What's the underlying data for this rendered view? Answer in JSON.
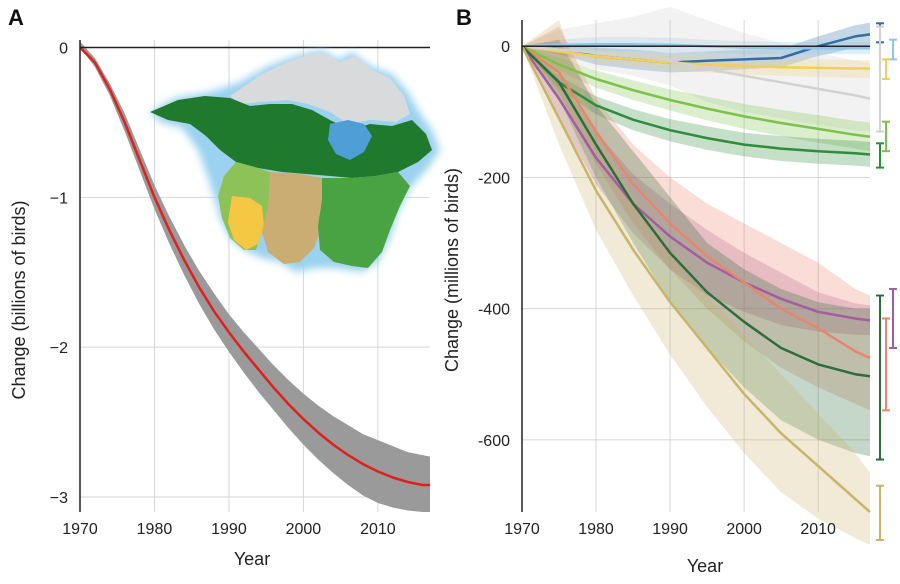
{
  "panel_a": {
    "label": "A",
    "chart_data": {
      "type": "line",
      "xlabel": "Year",
      "ylabel": "Change (billions of birds)",
      "xlim": [
        1970,
        2017
      ],
      "ylim": [
        -3.1,
        0.05
      ],
      "xticks": [
        1970,
        1980,
        1990,
        2000,
        2010
      ],
      "yticks": [
        0,
        -1,
        -2,
        -3
      ],
      "ytick_labels": [
        "0",
        "−1",
        "−2",
        "−3"
      ],
      "grid": true,
      "series": [
        {
          "color": "#e0201b",
          "band_color": "#9a9a9a",
          "x": [
            1970,
            1972,
            1974,
            1976,
            1978,
            1980,
            1982,
            1984,
            1986,
            1988,
            1990,
            1992,
            1994,
            1996,
            1998,
            2000,
            2002,
            2004,
            2006,
            2008,
            2010,
            2012,
            2014,
            2016,
            2017
          ],
          "y": [
            0,
            -0.1,
            -0.28,
            -0.5,
            -0.75,
            -1.0,
            -1.22,
            -1.42,
            -1.6,
            -1.76,
            -1.9,
            -2.03,
            -2.15,
            -2.27,
            -2.38,
            -2.48,
            -2.57,
            -2.65,
            -2.72,
            -2.78,
            -2.83,
            -2.87,
            -2.9,
            -2.92,
            -2.92
          ],
          "lower": [
            0,
            -0.13,
            -0.32,
            -0.56,
            -0.82,
            -1.08,
            -1.31,
            -1.52,
            -1.71,
            -1.88,
            -2.03,
            -2.17,
            -2.3,
            -2.42,
            -2.54,
            -2.65,
            -2.75,
            -2.84,
            -2.92,
            -2.99,
            -3.04,
            -3.07,
            -3.09,
            -3.1,
            -3.1
          ],
          "upper": [
            0.04,
            -0.07,
            -0.24,
            -0.44,
            -0.68,
            -0.92,
            -1.13,
            -1.32,
            -1.49,
            -1.64,
            -1.78,
            -1.9,
            -2.01,
            -2.12,
            -2.22,
            -2.31,
            -2.39,
            -2.46,
            -2.52,
            -2.58,
            -2.62,
            -2.66,
            -2.7,
            -2.72,
            -2.73
          ]
        }
      ]
    }
  },
  "panel_b": {
    "label": "B",
    "chart_data": {
      "type": "line",
      "xlabel": "Year",
      "ylabel": "Change (millions of birds)",
      "xlim": [
        1970,
        2017
      ],
      "ylim": [
        -710,
        40
      ],
      "xticks": [
        1970,
        1980,
        1990,
        2000,
        2010
      ],
      "yticks": [
        0,
        -200,
        -400,
        -600
      ],
      "ytick_labels": [
        "0",
        "-200",
        "-400",
        "-600"
      ],
      "grid": true,
      "series": [
        {
          "color": "#2f6fa6",
          "x": [
            1970,
            1975,
            1980,
            1985,
            1990,
            1995,
            2000,
            2005,
            2010,
            2015,
            2017
          ],
          "y": [
            0,
            -5,
            -15,
            -20,
            -25,
            -22,
            -20,
            -18,
            0,
            15,
            18
          ],
          "lower": [
            0,
            -12,
            -28,
            -35,
            -40,
            -38,
            -35,
            -32,
            -15,
            -2,
            0
          ],
          "upper": [
            0,
            2,
            -2,
            -5,
            -10,
            -8,
            -5,
            -4,
            15,
            32,
            36
          ],
          "range": [
            6,
            35
          ]
        },
        {
          "color": "#8cc6ea",
          "x": [
            1970,
            1975,
            1980,
            1985,
            1990,
            1995,
            2000,
            2005,
            2010,
            2015,
            2017
          ],
          "y": [
            0,
            2,
            3,
            3,
            2,
            0,
            -2,
            -3,
            -3,
            -3,
            -3
          ],
          "lower": [
            0,
            -6,
            -8,
            -8,
            -9,
            -10,
            -12,
            -12,
            -12,
            -12,
            -12
          ],
          "upper": [
            0,
            10,
            14,
            14,
            13,
            10,
            8,
            6,
            6,
            6,
            6
          ],
          "range": [
            -20,
            10
          ]
        },
        {
          "color": "#f3cf55",
          "x": [
            1970,
            1975,
            1980,
            1985,
            1990,
            1995,
            2000,
            2005,
            2010,
            2015,
            2017
          ],
          "y": [
            0,
            -8,
            -15,
            -20,
            -25,
            -28,
            -30,
            -32,
            -33,
            -34,
            -34
          ],
          "lower": [
            0,
            -14,
            -24,
            -30,
            -36,
            -40,
            -43,
            -45,
            -47,
            -48,
            -48
          ],
          "upper": [
            0,
            -2,
            -6,
            -10,
            -14,
            -16,
            -17,
            -19,
            -20,
            -21,
            -21
          ],
          "range": [
            -50,
            -20
          ]
        },
        {
          "color": "#d2d2d2",
          "x": [
            1970,
            1975,
            1980,
            1985,
            1990,
            1995,
            2000,
            2005,
            2010,
            2015,
            2017
          ],
          "y": [
            0,
            -5,
            -10,
            -15,
            -22,
            -35,
            -45,
            -55,
            -65,
            -75,
            -80
          ],
          "lower": [
            0,
            -20,
            -35,
            -45,
            -60,
            -85,
            -100,
            -110,
            -120,
            -128,
            -130
          ],
          "upper": [
            0,
            25,
            35,
            45,
            60,
            40,
            20,
            5,
            -10,
            -22,
            -25
          ],
          "range": [
            -130,
            30
          ]
        },
        {
          "color": "#7dc14b",
          "x": [
            1970,
            1975,
            1980,
            1985,
            1990,
            1995,
            2000,
            2005,
            2010,
            2015,
            2017
          ],
          "y": [
            0,
            -28,
            -50,
            -67,
            -82,
            -95,
            -107,
            -117,
            -126,
            -135,
            -138
          ],
          "lower": [
            0,
            -38,
            -63,
            -82,
            -98,
            -113,
            -126,
            -137,
            -147,
            -156,
            -160
          ],
          "upper": [
            0,
            -18,
            -37,
            -52,
            -66,
            -77,
            -88,
            -97,
            -105,
            -114,
            -116
          ],
          "range": [
            -160,
            -115
          ]
        },
        {
          "color": "#2e8c3a",
          "x": [
            1970,
            1975,
            1980,
            1985,
            1990,
            1995,
            2000,
            2005,
            2010,
            2015,
            2017
          ],
          "y": [
            0,
            -55,
            -90,
            -112,
            -128,
            -140,
            -150,
            -156,
            -160,
            -163,
            -165
          ],
          "lower": [
            0,
            -65,
            -104,
            -128,
            -145,
            -158,
            -168,
            -175,
            -179,
            -182,
            -184
          ],
          "upper": [
            0,
            -45,
            -76,
            -96,
            -111,
            -122,
            -132,
            -137,
            -141,
            -144,
            -146
          ],
          "range": [
            -185,
            -148
          ]
        },
        {
          "color": "#a45ca3",
          "x": [
            1970,
            1975,
            1980,
            1985,
            1990,
            1995,
            2000,
            2005,
            2010,
            2015,
            2017
          ],
          "y": [
            0,
            -80,
            -170,
            -240,
            -290,
            -330,
            -360,
            -385,
            -405,
            -415,
            -418
          ],
          "lower": [
            0,
            -110,
            -210,
            -285,
            -340,
            -380,
            -405,
            -425,
            -435,
            -440,
            -440
          ],
          "upper": [
            0,
            -50,
            -130,
            -195,
            -240,
            -280,
            -315,
            -345,
            -375,
            -392,
            -395
          ],
          "range": [
            -460,
            -370
          ]
        },
        {
          "color": "#e8866d",
          "x": [
            1970,
            1975,
            1980,
            1985,
            1990,
            1995,
            2000,
            2005,
            2010,
            2015,
            2017
          ],
          "y": [
            0,
            -40,
            -130,
            -210,
            -270,
            -320,
            -360,
            -400,
            -430,
            -465,
            -475
          ],
          "lower": [
            0,
            -70,
            -180,
            -270,
            -340,
            -400,
            -450,
            -490,
            -520,
            -545,
            -555
          ],
          "upper": [
            0,
            30,
            -80,
            -150,
            -200,
            -240,
            -270,
            -300,
            -330,
            -370,
            -380
          ],
          "range": [
            -555,
            -415
          ]
        },
        {
          "color": "#2b6e3b",
          "x": [
            1970,
            1975,
            1980,
            1985,
            1990,
            1995,
            2000,
            2005,
            2010,
            2015,
            2017
          ],
          "y": [
            0,
            -55,
            -150,
            -240,
            -315,
            -375,
            -420,
            -460,
            -485,
            -500,
            -503
          ],
          "lower": [
            0,
            -80,
            -200,
            -300,
            -390,
            -460,
            -520,
            -570,
            -600,
            -620,
            -625
          ],
          "upper": [
            0,
            10,
            -90,
            -160,
            -230,
            -300,
            -340,
            -370,
            -390,
            -400,
            -400
          ],
          "range": [
            -630,
            -380
          ]
        },
        {
          "color": "#c8b56a",
          "x": [
            1970,
            1975,
            1980,
            1985,
            1990,
            1995,
            2000,
            2005,
            2010,
            2015,
            2017
          ],
          "y": [
            0,
            -110,
            -220,
            -310,
            -390,
            -460,
            -530,
            -590,
            -640,
            -690,
            -710
          ],
          "lower": [
            0,
            -150,
            -280,
            -380,
            -470,
            -550,
            -620,
            -680,
            -720,
            -750,
            -760
          ],
          "upper": [
            0,
            40,
            -130,
            -230,
            -310,
            -380,
            -440,
            -500,
            -560,
            -620,
            -650
          ],
          "range": [
            -765,
            -670
          ]
        }
      ]
    }
  },
  "map_colors": {
    "ocean_glow": "#9ad2ef",
    "arctic_ice": "#d9dadb",
    "tundra_lake": "#4f9fd6",
    "boreal_forest": "#1f7a2e",
    "eastern_forest": "#4aa343",
    "grassland": "#c9ad72",
    "western_forest": "#8dc259",
    "aridland": "#f4c842"
  }
}
